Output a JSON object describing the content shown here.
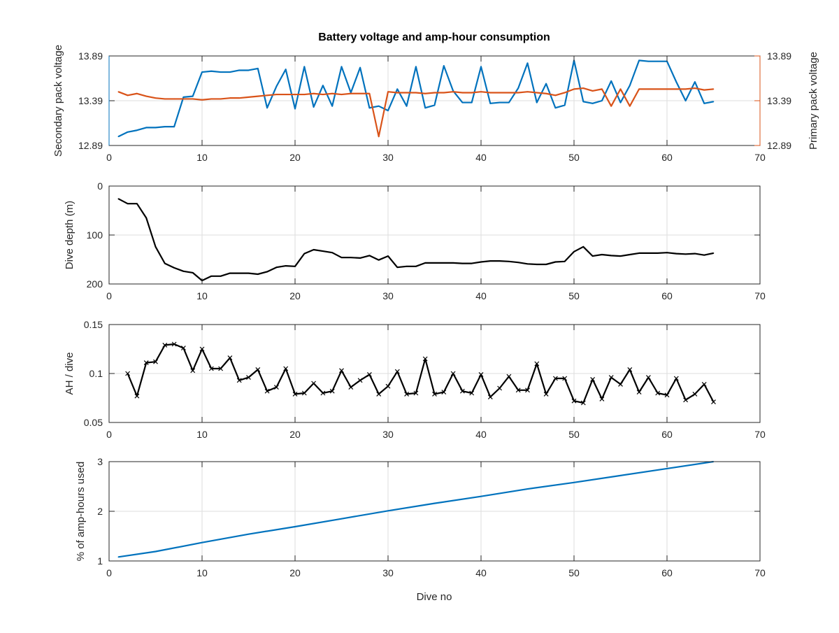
{
  "figure": {
    "title": "Battery voltage and amp-hour consumption",
    "xlabel": "Dive no"
  },
  "chart_data": [
    {
      "type": "line",
      "title": "Battery voltage and amp-hour consumption",
      "xlabel": "",
      "ylabel": "Secondary pack voltage",
      "ylabel_right": "Primary pack voltage",
      "xlim": [
        0,
        70
      ],
      "ylim": [
        12.89,
        13.89
      ],
      "ylim_right": [
        12.89,
        13.89
      ],
      "xticks": [
        "0",
        "10",
        "20",
        "30",
        "40",
        "50",
        "60",
        "70"
      ],
      "yticks": [
        "12.89",
        "13.39",
        "13.89"
      ],
      "yticks_right": [
        "12.89",
        "13.39",
        "13.89"
      ],
      "grid": true,
      "colors": {
        "secondary": "#0072BD",
        "primary": "#D95319"
      },
      "x": [
        1,
        2,
        3,
        4,
        5,
        6,
        7,
        8,
        9,
        10,
        11,
        12,
        13,
        14,
        15,
        16,
        17,
        18,
        19,
        20,
        21,
        22,
        23,
        24,
        25,
        26,
        27,
        28,
        29,
        30,
        31,
        32,
        33,
        34,
        35,
        36,
        37,
        38,
        39,
        40,
        41,
        42,
        43,
        44,
        45,
        46,
        47,
        48,
        49,
        50,
        51,
        52,
        53,
        54,
        55,
        56,
        57,
        58,
        59,
        60,
        61,
        62,
        63,
        64,
        65
      ],
      "series": [
        {
          "key": "secondary",
          "axis": "left",
          "values": [
            12.99,
            13.04,
            13.06,
            13.09,
            13.09,
            13.1,
            13.1,
            13.43,
            13.44,
            13.71,
            13.72,
            13.71,
            13.71,
            13.73,
            13.73,
            13.75,
            13.31,
            13.55,
            13.74,
            13.3,
            13.77,
            13.32,
            13.56,
            13.33,
            13.77,
            13.48,
            13.76,
            13.31,
            13.33,
            13.28,
            13.52,
            13.33,
            13.77,
            13.31,
            13.34,
            13.78,
            13.5,
            13.37,
            13.37,
            13.77,
            13.36,
            13.37,
            13.37,
            13.53,
            13.81,
            13.37,
            13.58,
            13.31,
            13.34,
            13.84,
            13.38,
            13.36,
            13.39,
            13.61,
            13.37,
            13.56,
            13.84,
            13.83,
            13.83,
            13.83,
            13.6,
            13.39,
            13.6,
            13.36,
            13.38
          ]
        },
        {
          "key": "primary",
          "axis": "right",
          "values": [
            13.49,
            13.45,
            13.47,
            13.44,
            13.42,
            13.41,
            13.41,
            13.41,
            13.41,
            13.4,
            13.41,
            13.41,
            13.42,
            13.42,
            13.43,
            13.44,
            13.45,
            13.46,
            13.46,
            13.46,
            13.46,
            13.47,
            13.46,
            13.47,
            13.46,
            13.47,
            13.47,
            13.47,
            12.99,
            13.49,
            13.48,
            13.48,
            13.48,
            13.47,
            13.48,
            13.48,
            13.49,
            13.48,
            13.48,
            13.49,
            13.48,
            13.48,
            13.48,
            13.48,
            13.49,
            13.48,
            13.47,
            13.45,
            13.48,
            13.52,
            13.53,
            13.5,
            13.52,
            13.33,
            13.52,
            13.33,
            13.52,
            13.52,
            13.52,
            13.52,
            13.52,
            13.52,
            13.53,
            13.51,
            13.52
          ]
        }
      ]
    },
    {
      "type": "line",
      "title": "",
      "xlabel": "",
      "ylabel": "Dive depth (m)",
      "xlim": [
        0,
        70
      ],
      "ylim": [
        0,
        200
      ],
      "y_reversed": true,
      "xticks": [
        "0",
        "10",
        "20",
        "30",
        "40",
        "50",
        "60",
        "70"
      ],
      "yticks": [
        "0",
        "100",
        "200"
      ],
      "grid": true,
      "colors": {
        "line": "#000000"
      },
      "x": [
        1,
        2,
        3,
        4,
        5,
        6,
        7,
        8,
        9,
        10,
        11,
        12,
        13,
        14,
        15,
        16,
        17,
        18,
        19,
        20,
        21,
        22,
        23,
        24,
        25,
        26,
        27,
        28,
        29,
        30,
        31,
        32,
        33,
        34,
        35,
        36,
        37,
        38,
        39,
        40,
        41,
        42,
        43,
        44,
        45,
        46,
        47,
        48,
        49,
        50,
        51,
        52,
        53,
        54,
        55,
        56,
        57,
        58,
        59,
        60,
        61,
        62,
        63,
        64,
        65
      ],
      "series": [
        {
          "values": [
            26,
            36,
            36,
            65,
            124,
            158,
            167,
            174,
            177,
            193,
            184,
            184,
            178,
            178,
            178,
            180,
            175,
            166,
            163,
            164,
            138,
            130,
            133,
            136,
            146,
            146,
            147,
            142,
            151,
            143,
            166,
            164,
            164,
            157,
            157,
            157,
            157,
            158,
            158,
            155,
            153,
            153,
            154,
            156,
            159,
            160,
            160,
            155,
            154,
            134,
            124,
            143,
            140,
            142,
            143,
            140,
            137,
            137,
            137,
            136,
            138,
            139,
            138,
            141,
            137
          ]
        }
      ]
    },
    {
      "type": "line",
      "title": "",
      "xlabel": "",
      "ylabel": "AH / dive",
      "xlim": [
        0,
        70
      ],
      "ylim": [
        0.05,
        0.15
      ],
      "xticks": [
        "0",
        "10",
        "20",
        "30",
        "40",
        "50",
        "60",
        "70"
      ],
      "yticks": [
        "0.05",
        "0.1",
        "0.15"
      ],
      "grid": true,
      "markers": "x",
      "colors": {
        "line": "#000000"
      },
      "x": [
        2,
        3,
        4,
        5,
        6,
        7,
        8,
        9,
        10,
        11,
        12,
        13,
        14,
        15,
        16,
        17,
        18,
        19,
        20,
        21,
        22,
        23,
        24,
        25,
        26,
        27,
        28,
        29,
        30,
        31,
        32,
        33,
        34,
        35,
        36,
        37,
        38,
        39,
        40,
        41,
        42,
        43,
        44,
        45,
        46,
        47,
        48,
        49,
        50,
        51,
        52,
        53,
        54,
        55,
        56,
        57,
        58,
        59,
        60,
        61,
        62,
        63,
        64,
        65
      ],
      "series": [
        {
          "values": [
            0.1,
            0.077,
            0.111,
            0.112,
            0.129,
            0.13,
            0.126,
            0.103,
            0.125,
            0.105,
            0.105,
            0.116,
            0.093,
            0.096,
            0.104,
            0.082,
            0.086,
            0.105,
            0.079,
            0.08,
            0.09,
            0.08,
            0.082,
            0.103,
            0.086,
            0.093,
            0.099,
            0.079,
            0.087,
            0.102,
            0.079,
            0.08,
            0.115,
            0.079,
            0.081,
            0.1,
            0.082,
            0.08,
            0.099,
            0.076,
            0.085,
            0.097,
            0.083,
            0.083,
            0.11,
            0.079,
            0.095,
            0.095,
            0.072,
            0.07,
            0.094,
            0.074,
            0.096,
            0.089,
            0.104,
            0.081,
            0.096,
            0.08,
            0.078,
            0.095,
            0.073,
            0.079,
            0.089,
            0.071
          ]
        }
      ]
    },
    {
      "type": "line",
      "title": "",
      "xlabel": "Dive no",
      "ylabel": "% of amp-hours used",
      "xlim": [
        0,
        70
      ],
      "ylim": [
        1,
        3
      ],
      "xticks": [
        "0",
        "10",
        "20",
        "30",
        "40",
        "50",
        "60",
        "70"
      ],
      "yticks": [
        "1",
        "2",
        "3"
      ],
      "grid": true,
      "colors": {
        "line": "#0072BD"
      },
      "x": [
        1,
        5,
        10,
        15,
        20,
        25,
        30,
        35,
        40,
        45,
        50,
        55,
        60,
        65
      ],
      "series": [
        {
          "values": [
            1.08,
            1.19,
            1.37,
            1.54,
            1.69,
            1.85,
            2.01,
            2.16,
            2.3,
            2.45,
            2.58,
            2.72,
            2.86,
            3.0
          ]
        }
      ]
    }
  ]
}
